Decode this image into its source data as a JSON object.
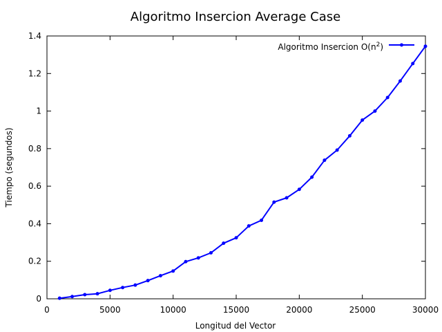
{
  "chart_data": {
    "type": "line",
    "title": "Algoritmo Insercion Average Case",
    "xlabel": "Longitud del Vector",
    "ylabel": "Tiempo (segundos)",
    "xlim": [
      0,
      30000
    ],
    "ylim": [
      0,
      1.4
    ],
    "xticks": [
      "0",
      "5000",
      "10000",
      "15000",
      "20000",
      "25000",
      "30000"
    ],
    "yticks": [
      "0",
      "0.2",
      "0.4",
      "0.6",
      "0.8",
      "1",
      "1.2",
      "1.4"
    ],
    "grid": false,
    "legend_position": "top-right",
    "series": [
      {
        "name": "Algoritmo Insercion O(n²)",
        "legend_text": "Algoritmo Insercion O(n",
        "legend_sup": "2",
        "legend_suffix": ")",
        "color": "#0000ff",
        "x": [
          1000,
          2000,
          3000,
          4000,
          5000,
          6000,
          7000,
          8000,
          9000,
          10000,
          11000,
          12000,
          13000,
          14000,
          15000,
          16000,
          17000,
          18000,
          19000,
          20000,
          21000,
          22000,
          23000,
          24000,
          25000,
          26000,
          27000,
          28000,
          29000,
          30000
        ],
        "values": [
          0.003,
          0.012,
          0.022,
          0.027,
          0.045,
          0.06,
          0.073,
          0.097,
          0.123,
          0.148,
          0.198,
          0.218,
          0.245,
          0.296,
          0.325,
          0.388,
          0.418,
          0.515,
          0.538,
          0.583,
          0.648,
          0.738,
          0.792,
          0.868,
          0.952,
          1.0,
          1.072,
          1.16,
          1.253,
          1.345
        ]
      }
    ]
  }
}
